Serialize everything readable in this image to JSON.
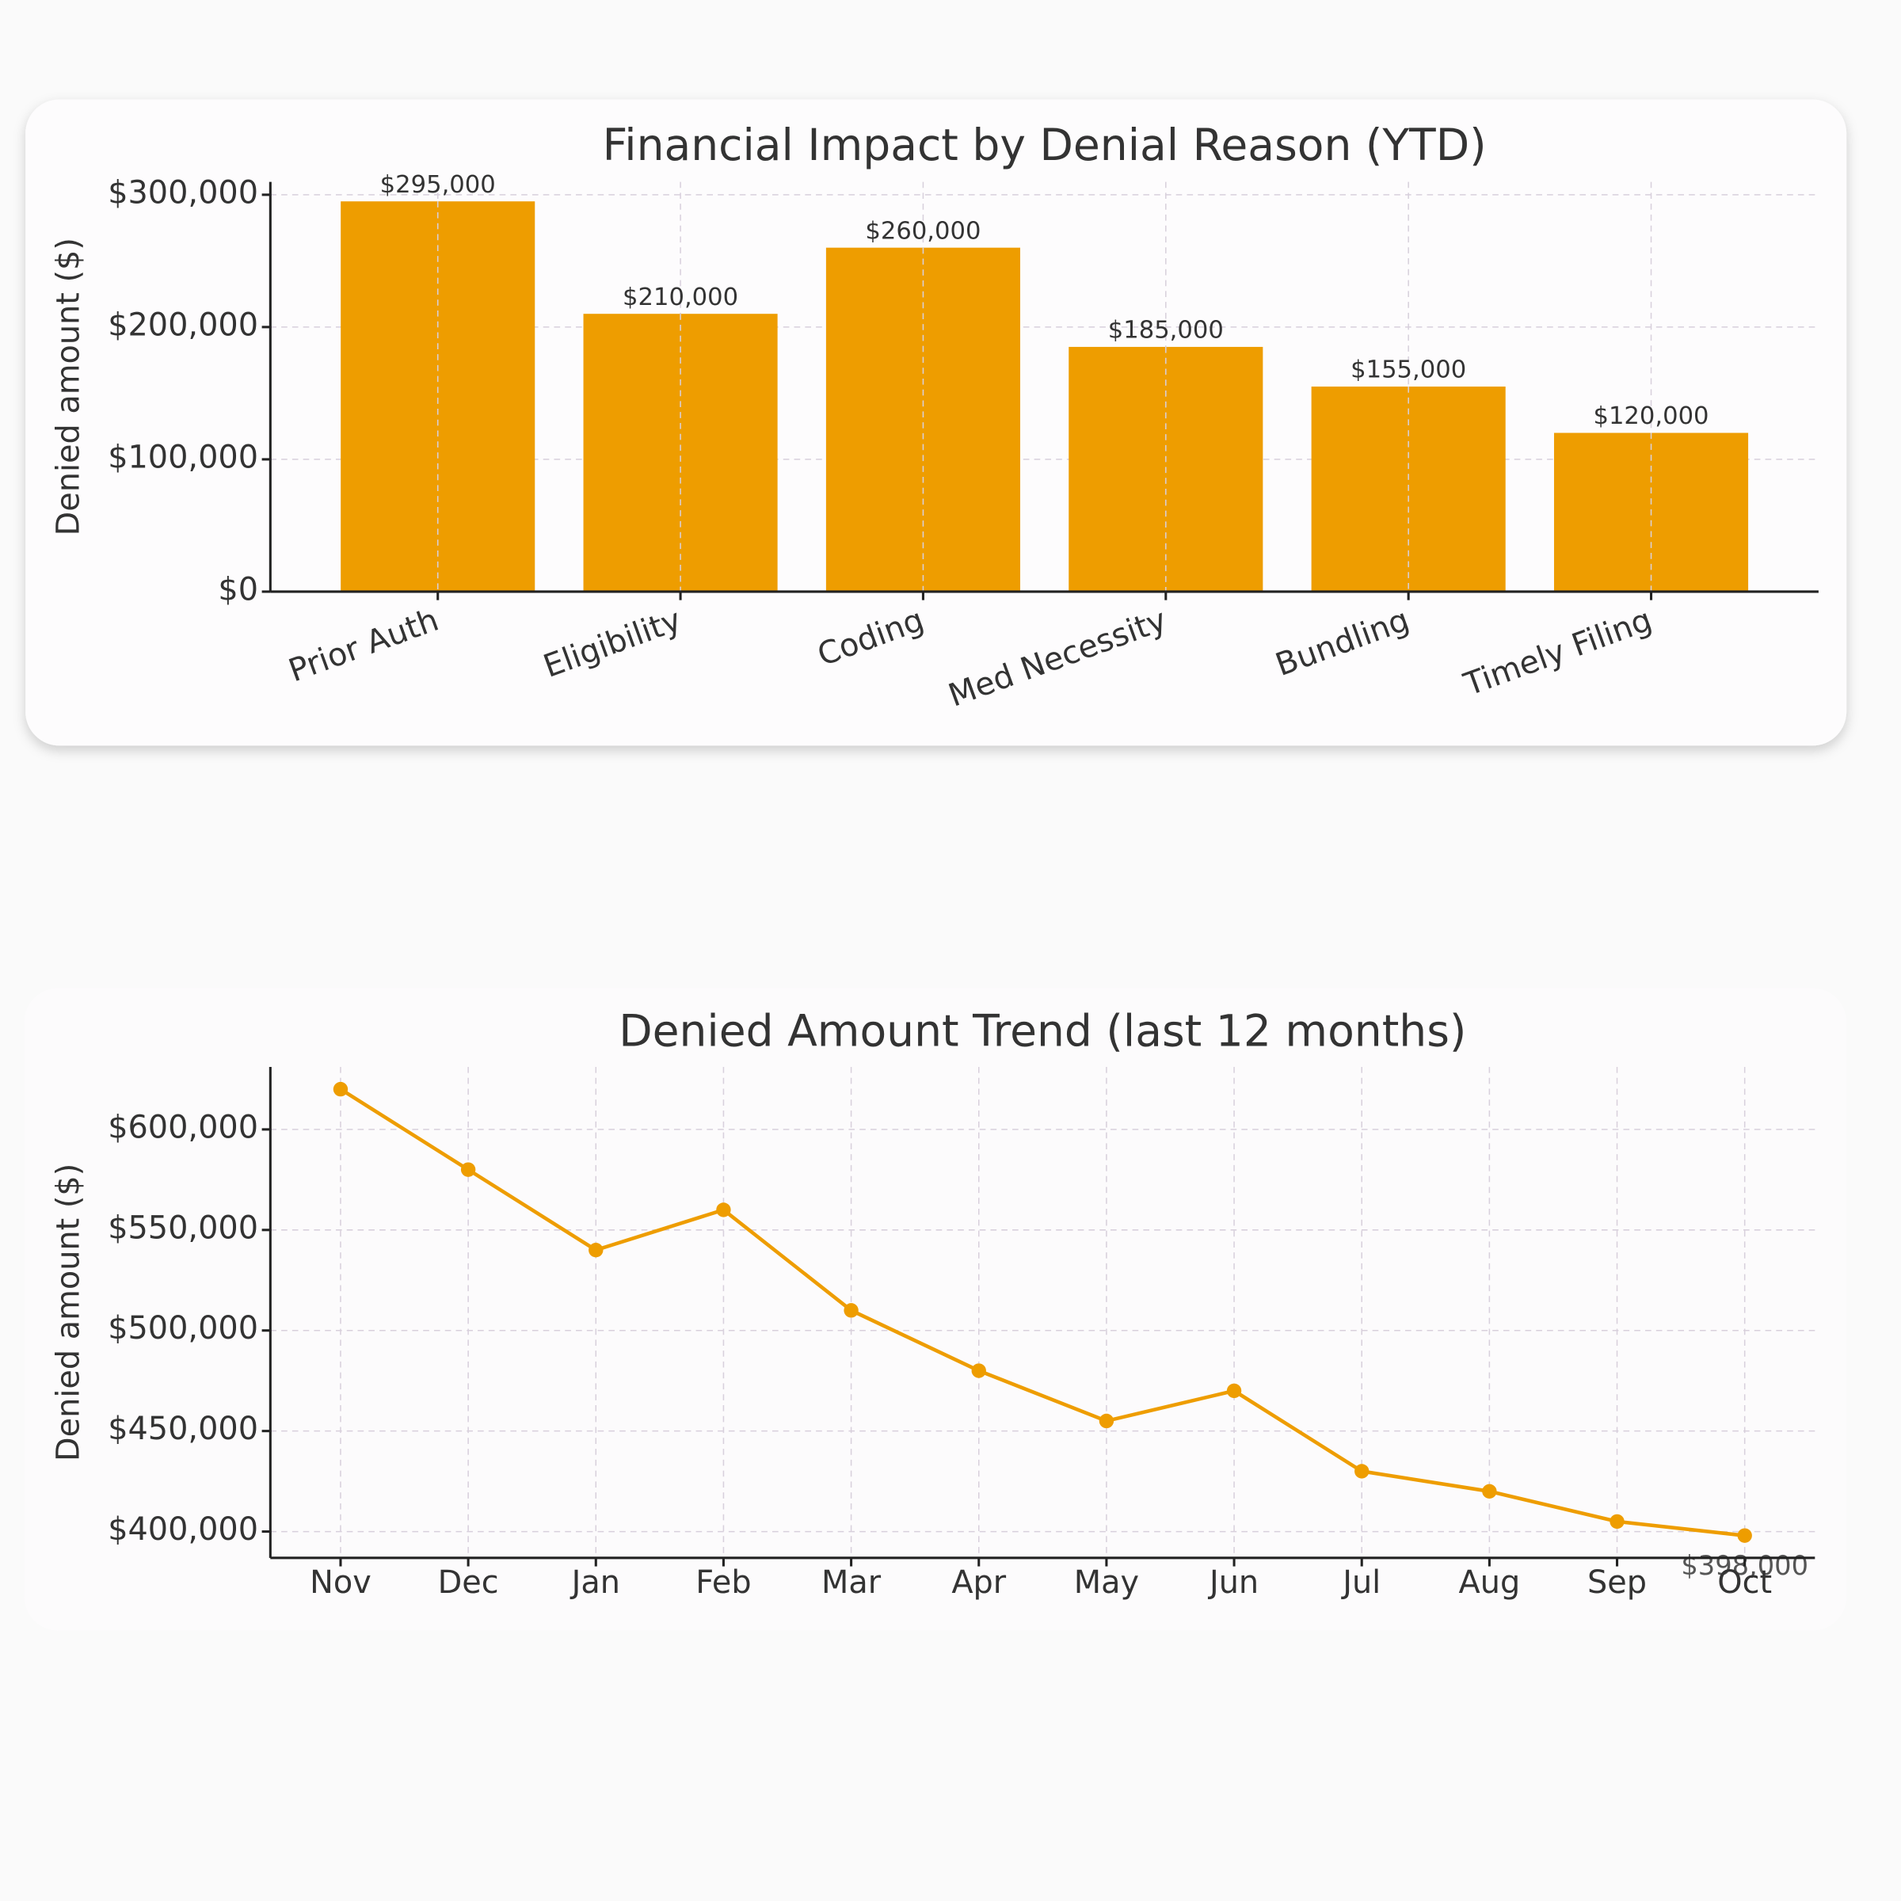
{
  "chart_data": [
    {
      "type": "bar",
      "title": "Financial Impact by Denial Reason (YTD)",
      "y_label": "Denied amount ($)",
      "categories": [
        "Prior Auth",
        "Eligibility",
        "Coding",
        "Med Necessity",
        "Bundling",
        "Timely Filing"
      ],
      "values": [
        295000,
        210000,
        260000,
        185000,
        155000,
        120000
      ],
      "value_labels": [
        "$295,000",
        "$210,000",
        "$260,000",
        "$185,000",
        "$155,000",
        "$120,000"
      ],
      "color": "#ee9d00",
      "ylim": [
        0,
        309750
      ],
      "yticks": [
        {
          "value": 0,
          "label": "$0"
        },
        {
          "value": 100000,
          "label": "$100,000"
        },
        {
          "value": 200000,
          "label": "$200,000"
        },
        {
          "value": 300000,
          "label": "$300,000"
        }
      ],
      "grid": true
    },
    {
      "type": "line",
      "title": "Denied Amount Trend (last 12 months)",
      "y_label": "Denied amount ($)",
      "categories": [
        "Nov",
        "Dec",
        "Jan",
        "Feb",
        "Mar",
        "Apr",
        "May",
        "Jun",
        "Jul",
        "Aug",
        "Sep",
        "Oct"
      ],
      "values": [
        620000,
        580000,
        540000,
        560000,
        510000,
        480000,
        455000,
        470000,
        430000,
        420000,
        405000,
        398000
      ],
      "value_labels": [
        null,
        null,
        null,
        null,
        null,
        null,
        null,
        null,
        null,
        null,
        null,
        "$398,000"
      ],
      "color": "#ee9d00",
      "ylim": [
        386900,
        631100
      ],
      "yticks": [
        {
          "value": 400000,
          "label": "$400,000"
        },
        {
          "value": 450000,
          "label": "$450,000"
        },
        {
          "value": 500000,
          "label": "$500,000"
        },
        {
          "value": 550000,
          "label": "$550,000"
        },
        {
          "value": 600000,
          "label": "$600,000"
        }
      ],
      "grid": true
    }
  ]
}
